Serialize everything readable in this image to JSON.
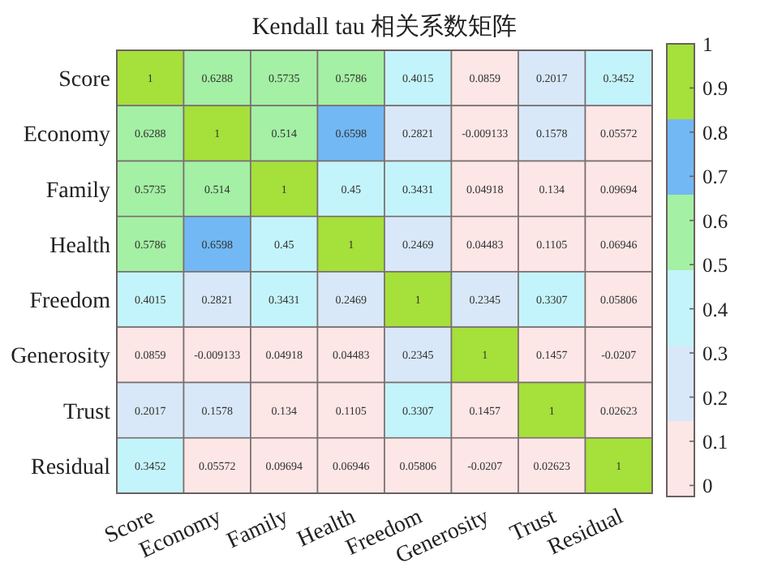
{
  "chart_data": {
    "type": "heatmap",
    "title": "Kendall tau 相关系数矩阵",
    "categories": [
      "Score",
      "Economy",
      "Family",
      "Health",
      "Freedom",
      "Generosity",
      "Trust",
      "Residual"
    ],
    "y_categories": [
      "Score",
      "Economy",
      "Family",
      "Health",
      "Freedom",
      "Generosity",
      "Trust",
      "Residual"
    ],
    "cells": [
      [
        1,
        0.6288,
        0.5735,
        0.5786,
        0.4015,
        0.0859,
        0.2017,
        0.3452
      ],
      [
        0.6288,
        1,
        0.514,
        0.6598,
        0.2821,
        -0.009133,
        0.1578,
        0.05572
      ],
      [
        0.5735,
        0.514,
        1,
        0.45,
        0.3431,
        0.04918,
        0.134,
        0.09694
      ],
      [
        0.5786,
        0.6598,
        0.45,
        1,
        0.2469,
        0.04483,
        0.1105,
        0.06946
      ],
      [
        0.4015,
        0.2821,
        0.3431,
        0.2469,
        1,
        0.2345,
        0.3307,
        0.05806
      ],
      [
        0.0859,
        -0.009133,
        0.04918,
        0.04483,
        0.2345,
        1,
        0.1457,
        -0.0207
      ],
      [
        0.2017,
        0.1578,
        0.134,
        0.1105,
        0.3307,
        0.1457,
        1,
        0.02623
      ],
      [
        0.3452,
        0.05572,
        0.09694,
        0.06946,
        0.05806,
        -0.0207,
        0.02623,
        1
      ]
    ],
    "colors": [
      "#fde6e6",
      "#d8e8f8",
      "#c4f4fb",
      "#a4f0a4",
      "#72b8f4",
      "#a6e03a"
    ],
    "clim": [
      -0.025,
      1
    ],
    "cticks": [
      0,
      0.1,
      0.2,
      0.3,
      0.4,
      0.5,
      0.6,
      0.7,
      0.8,
      0.9,
      1
    ],
    "data_labels": true
  }
}
